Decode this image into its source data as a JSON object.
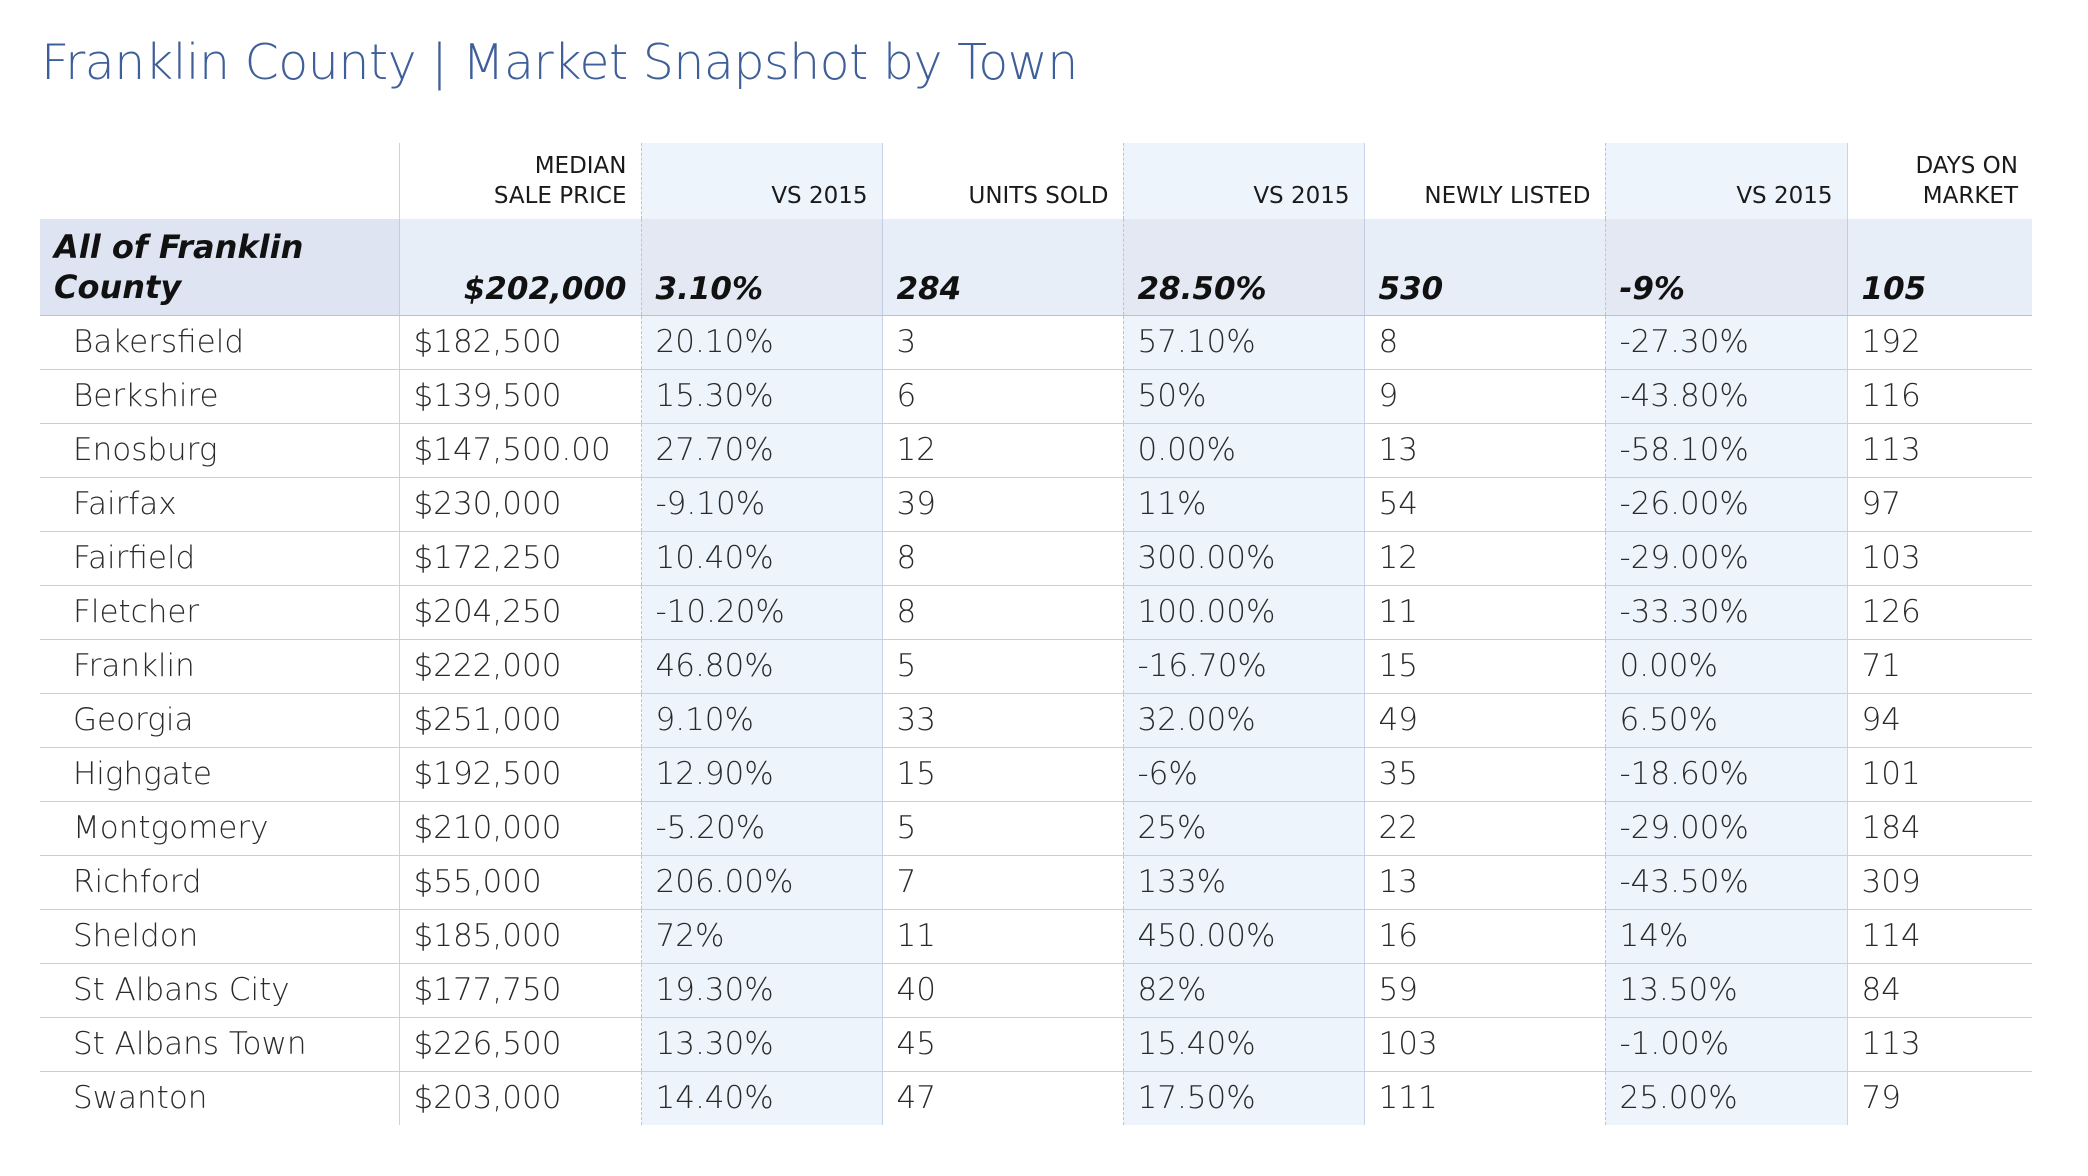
{
  "title": "Franklin County | Market Snapshot by Town",
  "columns": {
    "median_sale_price": [
      "MEDIAN",
      "SALE PRICE"
    ],
    "vs_2015_price": "VS 2015",
    "units_sold": "UNITS SOLD",
    "vs_2015_units": "VS 2015",
    "newly_listed": "NEWLY LISTED",
    "vs_2015_listed": "VS 2015",
    "days_on_market": [
      "DAYS ON",
      "MARKET"
    ]
  },
  "summary": {
    "name": [
      "All of Franklin",
      "County"
    ],
    "median": "$202,000",
    "vs_price": "3.10%",
    "units": "284",
    "vs_units": "28.50%",
    "listed": "530",
    "vs_listed": "-9%",
    "dom": "105"
  },
  "rows": [
    {
      "town": "Bakersfield",
      "median": "$182,500",
      "vs_price": "20.10%",
      "units": "3",
      "vs_units": "57.10%",
      "listed": "8",
      "vs_listed": "-27.30%",
      "dom": "192"
    },
    {
      "town": "Berkshire",
      "median": "$139,500",
      "vs_price": "15.30%",
      "units": "6",
      "vs_units": "50%",
      "listed": "9",
      "vs_listed": "-43.80%",
      "dom": "116"
    },
    {
      "town": "Enosburg",
      "median": "$147,500.00",
      "vs_price": "27.70%",
      "units": "12",
      "vs_units": "0.00%",
      "listed": "13",
      "vs_listed": "-58.10%",
      "dom": "113"
    },
    {
      "town": "Fairfax",
      "median": "$230,000",
      "vs_price": "-9.10%",
      "units": "39",
      "vs_units": "11%",
      "listed": "54",
      "vs_listed": "-26.00%",
      "dom": "97"
    },
    {
      "town": "Fairfield",
      "median": "$172,250",
      "vs_price": "10.40%",
      "units": "8",
      "vs_units": "300.00%",
      "listed": "12",
      "vs_listed": "-29.00%",
      "dom": "103"
    },
    {
      "town": "Fletcher",
      "median": "$204,250",
      "vs_price": "-10.20%",
      "units": "8",
      "vs_units": "100.00%",
      "listed": "11",
      "vs_listed": "-33.30%",
      "dom": "126"
    },
    {
      "town": "Franklin",
      "median": "$222,000",
      "vs_price": "46.80%",
      "units": "5",
      "vs_units": "-16.70%",
      "listed": "15",
      "vs_listed": "0.00%",
      "dom": "71"
    },
    {
      "town": "Georgia",
      "median": "$251,000",
      "vs_price": "9.10%",
      "units": "33",
      "vs_units": "32.00%",
      "listed": "49",
      "vs_listed": "6.50%",
      "dom": "94"
    },
    {
      "town": "Highgate",
      "median": "$192,500",
      "vs_price": "12.90%",
      "units": "15",
      "vs_units": "-6%",
      "listed": "35",
      "vs_listed": "-18.60%",
      "dom": "101"
    },
    {
      "town": "Montgomery",
      "median": "$210,000",
      "vs_price": "-5.20%",
      "units": "5",
      "vs_units": "25%",
      "listed": "22",
      "vs_listed": "-29.00%",
      "dom": "184"
    },
    {
      "town": "Richford",
      "median": "$55,000",
      "vs_price": "206.00%",
      "units": "7",
      "vs_units": "133%",
      "listed": "13",
      "vs_listed": "-43.50%",
      "dom": "309"
    },
    {
      "town": "Sheldon",
      "median": "$185,000",
      "vs_price": "72%",
      "units": "11",
      "vs_units": "450.00%",
      "listed": "16",
      "vs_listed": "14%",
      "dom": "114"
    },
    {
      "town": "St Albans City",
      "median": "$177,750",
      "vs_price": "19.30%",
      "units": "40",
      "vs_units": "82%",
      "listed": "59",
      "vs_listed": "13.50%",
      "dom": "84"
    },
    {
      "town": "St Albans Town",
      "median": "$226,500",
      "vs_price": "13.30%",
      "units": "45",
      "vs_units": "15.40%",
      "listed": "103",
      "vs_listed": "-1.00%",
      "dom": "113"
    },
    {
      "town": "Swanton",
      "median": "$203,000",
      "vs_price": "14.40%",
      "units": "47",
      "vs_units": "17.50%",
      "listed": "111",
      "vs_listed": "25.00%",
      "dom": "79"
    }
  ]
}
